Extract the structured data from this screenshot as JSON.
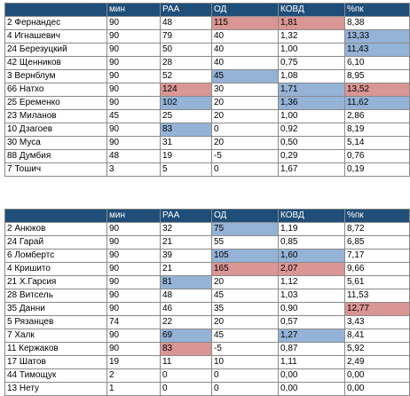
{
  "columns": [
    "",
    "мин",
    "РАА",
    "ОД",
    "КОВД",
    "%пк"
  ],
  "tables": [
    {
      "rows": [
        [
          "2 Фернандес",
          "90",
          "48",
          "115",
          "1,81",
          "8,38"
        ],
        [
          "4 Игнашевич",
          "90",
          "79",
          "40",
          "1,32",
          "13,33"
        ],
        [
          "24 Березуцкий",
          "90",
          "50",
          "40",
          "1,00",
          "11,43"
        ],
        [
          "42 Щенников",
          "90",
          "28",
          "40",
          "0,75",
          "6,10"
        ],
        [
          "3 Вернблум",
          "90",
          "52",
          "45",
          "1,08",
          "8,95"
        ],
        [
          "66 Натхо",
          "90",
          "124",
          "30",
          "1,71",
          "13,52"
        ],
        [
          "25 Еременко",
          "90",
          "102",
          "20",
          "1,36",
          "11,62"
        ],
        [
          "23 Миланов",
          "45",
          "25",
          "20",
          "1,00",
          "2,86"
        ],
        [
          "10 Дзагоев",
          "90",
          "83",
          "0",
          "0,92",
          "8,19"
        ],
        [
          "30 Муса",
          "90",
          "31",
          "20",
          "0,50",
          "5,14"
        ],
        [
          "88 Думбия",
          "48",
          "19",
          "-5",
          "0,29",
          "0,76"
        ],
        [
          "7 Тошич",
          "3",
          "5",
          "0",
          "1,67",
          "0,19"
        ]
      ],
      "highlights": [
        [
          "",
          "",
          "",
          "red",
          "red",
          ""
        ],
        [
          "",
          "",
          "",
          "",
          "",
          "blue"
        ],
        [
          "",
          "",
          "",
          "",
          "",
          "blue"
        ],
        [
          "",
          "",
          "",
          "",
          "",
          ""
        ],
        [
          "",
          "",
          "",
          "blue",
          "",
          ""
        ],
        [
          "",
          "",
          "red",
          "",
          "blue",
          "red"
        ],
        [
          "",
          "",
          "blue",
          "",
          "blue",
          "blue"
        ],
        [
          "",
          "",
          "",
          "",
          "",
          ""
        ],
        [
          "",
          "",
          "blue",
          "",
          "",
          ""
        ],
        [
          "",
          "",
          "",
          "",
          "",
          ""
        ],
        [
          "",
          "",
          "",
          "",
          "",
          ""
        ],
        [
          "",
          "",
          "",
          "",
          "",
          ""
        ]
      ]
    },
    {
      "rows": [
        [
          "2 Анюков",
          "90",
          "32",
          "75",
          "1,19",
          "8,72"
        ],
        [
          "24 Гарай",
          "90",
          "21",
          "55",
          "0,85",
          "6,85"
        ],
        [
          "6 Ломбертс",
          "90",
          "39",
          "105",
          "1,60",
          "7,17"
        ],
        [
          "4 Кришито",
          "90",
          "21",
          "165",
          "2,07",
          "9,66"
        ],
        [
          "21 Х.Гарсия",
          "90",
          "81",
          "20",
          "1,12",
          "5,61"
        ],
        [
          "28 Витсель",
          "90",
          "48",
          "45",
          "1,03",
          "11,53"
        ],
        [
          "35 Данни",
          "90",
          "46",
          "35",
          "0,90",
          "12,77"
        ],
        [
          "5 Рязанцев",
          "74",
          "22",
          "20",
          "0,57",
          "3,43"
        ],
        [
          "7 Халк",
          "90",
          "69",
          "45",
          "1,27",
          "8,41"
        ],
        [
          "11 Кержаков",
          "90",
          "83",
          "-5",
          "0,87",
          "5,92"
        ],
        [
          "17 Шатов",
          "19",
          "11",
          "10",
          "1,11",
          "2,49"
        ],
        [
          "44 Тимощук",
          "2",
          "0",
          "0",
          "0,00",
          "0,00"
        ],
        [
          "13 Нету",
          "1",
          "0",
          "0",
          "0,00",
          "0,00"
        ]
      ],
      "highlights": [
        [
          "",
          "",
          "",
          "blue",
          "",
          ""
        ],
        [
          "",
          "",
          "",
          "",
          "",
          ""
        ],
        [
          "",
          "",
          "",
          "blue",
          "blue",
          ""
        ],
        [
          "",
          "",
          "",
          "red",
          "red",
          ""
        ],
        [
          "",
          "",
          "blue",
          "",
          "",
          ""
        ],
        [
          "",
          "",
          "",
          "",
          "",
          ""
        ],
        [
          "",
          "",
          "",
          "",
          "",
          "red"
        ],
        [
          "",
          "",
          "",
          "",
          "",
          ""
        ],
        [
          "",
          "",
          "blue",
          "",
          "blue",
          ""
        ],
        [
          "",
          "",
          "red",
          "",
          "",
          ""
        ],
        [
          "",
          "",
          "",
          "",
          "",
          ""
        ],
        [
          "",
          "",
          "",
          "",
          "",
          ""
        ],
        [
          "",
          "",
          "",
          "",
          "",
          ""
        ]
      ]
    }
  ],
  "colors": {
    "header": "#1f4e79",
    "blue": "#95b3d7",
    "red": "#da9694"
  }
}
